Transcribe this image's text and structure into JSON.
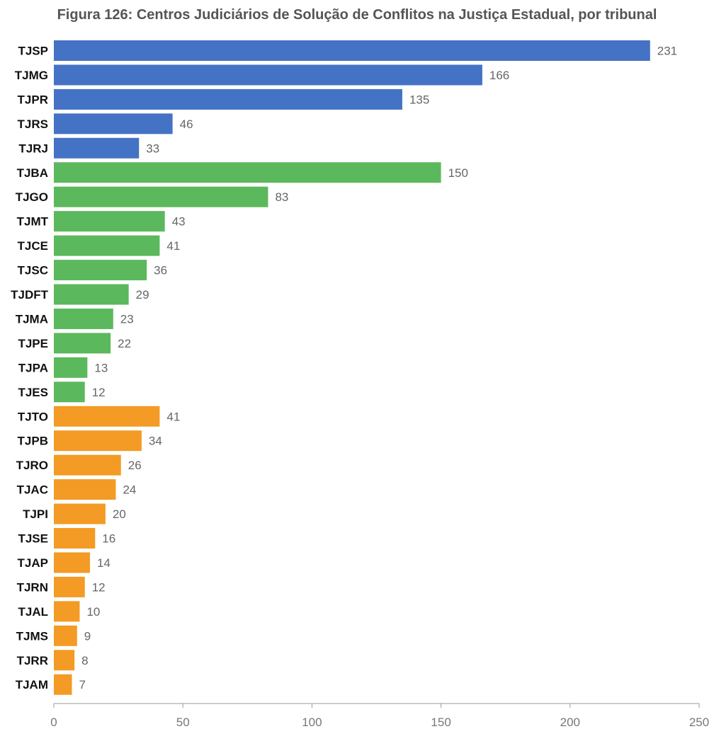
{
  "chart_data": {
    "type": "bar",
    "orientation": "horizontal",
    "title": "Figura 126: Centros Judiciários de Solução de Conflitos na Justiça Estadual, por tribunal",
    "xlabel": "",
    "ylabel": "",
    "xlim": [
      0,
      250
    ],
    "xticks": [
      0,
      50,
      100,
      150,
      200,
      250
    ],
    "grid": false,
    "categories": [
      "TJSP",
      "TJMG",
      "TJPR",
      "TJRS",
      "TJRJ",
      "TJBA",
      "TJGO",
      "TJMT",
      "TJCE",
      "TJSC",
      "TJDFT",
      "TJMA",
      "TJPE",
      "TJPA",
      "TJES",
      "TJTO",
      "TJPB",
      "TJRO",
      "TJAC",
      "TJPI",
      "TJSE",
      "TJAP",
      "TJRN",
      "TJAL",
      "TJMS",
      "TJRR",
      "TJAM"
    ],
    "values": [
      231,
      166,
      135,
      46,
      33,
      150,
      83,
      43,
      41,
      36,
      29,
      23,
      22,
      13,
      12,
      41,
      34,
      26,
      24,
      20,
      16,
      14,
      12,
      10,
      9,
      8,
      7
    ],
    "groups": [
      "blue",
      "blue",
      "blue",
      "blue",
      "blue",
      "green",
      "green",
      "green",
      "green",
      "green",
      "green",
      "green",
      "green",
      "green",
      "green",
      "orange",
      "orange",
      "orange",
      "orange",
      "orange",
      "orange",
      "orange",
      "orange",
      "orange",
      "orange",
      "orange",
      "orange"
    ],
    "colors": {
      "blue": "#4472c4",
      "green": "#5cb85c",
      "orange": "#f39b24"
    }
  }
}
